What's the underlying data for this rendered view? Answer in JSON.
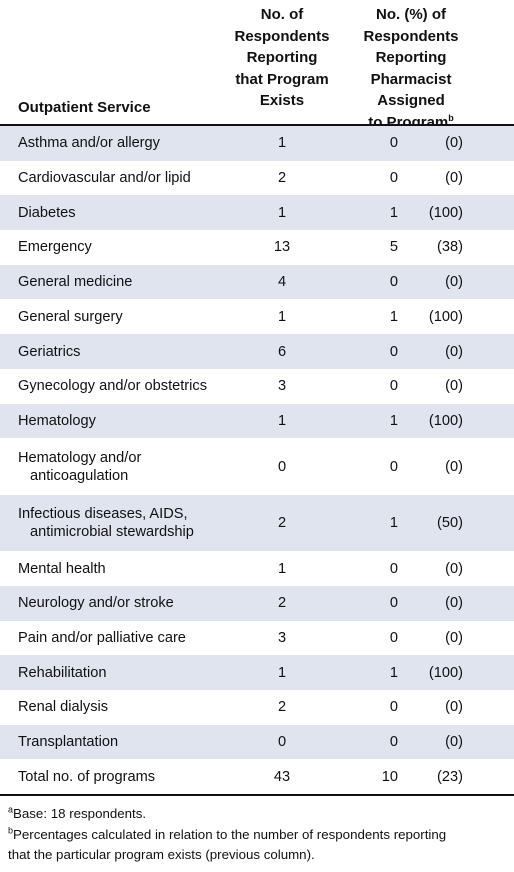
{
  "header": {
    "col1": "Outpatient Service",
    "col2": "No. of\nRespondents\nReporting\nthat Program\nExists",
    "col3": "No. (%) of\nRespondents\nReporting\nPharmacist Assigned\nto Program",
    "col3_note": "b"
  },
  "table": {
    "rows": [
      [
        "Asthma and/or allergy",
        "1",
        "0",
        "(0)"
      ],
      [
        "Cardiovascular and/or lipid",
        "2",
        "0",
        "(0)"
      ],
      [
        "Diabetes",
        "1",
        "1",
        "(100)"
      ],
      [
        "Emergency",
        "13",
        "5",
        "(38)"
      ],
      [
        "General medicine",
        "4",
        "0",
        "(0)"
      ],
      [
        "General surgery",
        "1",
        "1",
        "(100)"
      ],
      [
        "Geriatrics",
        "6",
        "0",
        "(0)"
      ],
      [
        "Gynecology and/or obstetrics",
        "3",
        "0",
        "(0)"
      ],
      [
        "Hematology",
        "1",
        "1",
        "(100)"
      ],
      [
        "Hematology and/or\nanticoagulation",
        "0",
        "0",
        "(0)"
      ],
      [
        "Infectious diseases, AIDS,\nantimicrobial stewardship",
        "2",
        "1",
        "(50)"
      ],
      [
        "Mental health",
        "1",
        "0",
        "(0)"
      ],
      [
        "Neurology and/or stroke",
        "2",
        "0",
        "(0)"
      ],
      [
        "Pain and/or palliative care",
        "3",
        "0",
        "(0)"
      ],
      [
        "Rehabilitation",
        "1",
        "1",
        "(100)"
      ],
      [
        "Renal dialysis",
        "2",
        "0",
        "(0)"
      ],
      [
        "Transplantation",
        "0",
        "0",
        "(0)"
      ],
      [
        "Total no. of programs",
        "43",
        "10",
        "(23)"
      ]
    ]
  },
  "footnotes": [
    {
      "marker": "a",
      "text": "Base: 18 respondents."
    },
    {
      "marker": "b",
      "text": "Percentages calculated in relation to the number of respondents reporting\nthat the particular program exists (previous column)."
    }
  ]
}
